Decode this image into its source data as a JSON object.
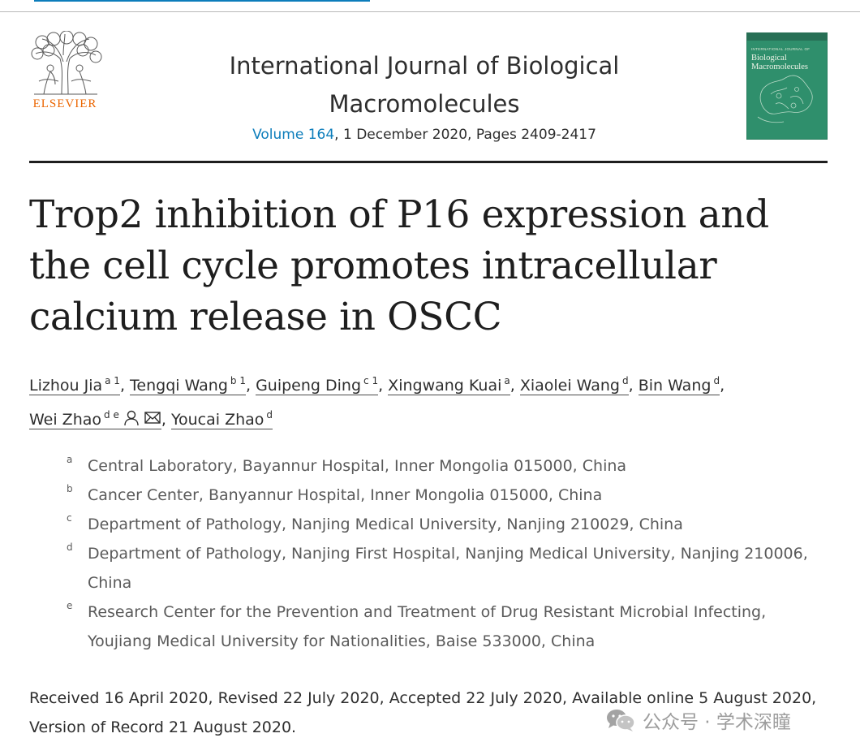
{
  "publisher": {
    "name": "ELSEVIER"
  },
  "journal": {
    "title_line1": "International Journal of Biological",
    "title_line2": "Macromolecules",
    "volume": "Volume 164",
    "issue_rest": ", 1 December 2020, Pages 2409-2417",
    "cover_title": "Biological Macromolecules",
    "cover_kicker": "INTERNATIONAL JOURNAL OF"
  },
  "article": {
    "title": "Trop2 inhibition of P16 expression and the cell cycle promotes intracellular calcium release in OSCC"
  },
  "authors": [
    {
      "name": "Lizhou Jia",
      "sup": "a 1",
      "sep": ", "
    },
    {
      "name": "Tengqi Wang",
      "sup": "b 1",
      "sep": ", "
    },
    {
      "name": "Guipeng Ding",
      "sup": "c 1",
      "sep": ", "
    },
    {
      "name": "Xingwang Kuai",
      "sup": "a",
      "sep": ", "
    },
    {
      "name": "Xiaolei Wang",
      "sup": "d",
      "sep": ", "
    },
    {
      "name": "Bin Wang",
      "sup": "d",
      "sep": ","
    },
    {
      "name": "Wei Zhao",
      "sup": "d e",
      "sep": ", "
    },
    {
      "name": "Youcai Zhao",
      "sup": "d",
      "sep": ""
    }
  ],
  "affiliations": [
    {
      "label": "a",
      "text": "Central Laboratory, Bayannur Hospital, Inner Mongolia 015000, China"
    },
    {
      "label": "b",
      "text": "Cancer Center, Banyannur Hospital, Inner Mongolia 015000, China"
    },
    {
      "label": "c",
      "text": "Department of Pathology, Nanjing Medical University, Nanjing 210029, China"
    },
    {
      "label": "d",
      "text": "Department of Pathology, Nanjing First Hospital, Nanjing Medical University, Nanjing 210006, China"
    },
    {
      "label": "e",
      "text": "Research Center for the Prevention and Treatment of Drug Resistant Microbial Infecting, Youjiang Medical University for Nationalities, Baise 533000, China"
    }
  ],
  "dates": {
    "text": "Received 16 April 2020, Revised 22 July 2020, Accepted 22 July 2020, Available online 5 August 2020, Version of Record 21 August 2020."
  },
  "watermark": {
    "text": "公众号 · 学术深瞳"
  },
  "colors": {
    "link": "#0c7dbb",
    "publisher": "#eb6500",
    "cover": "#2f8f6c"
  },
  "icons": [
    "person-icon",
    "envelope-icon",
    "wechat-icon"
  ]
}
